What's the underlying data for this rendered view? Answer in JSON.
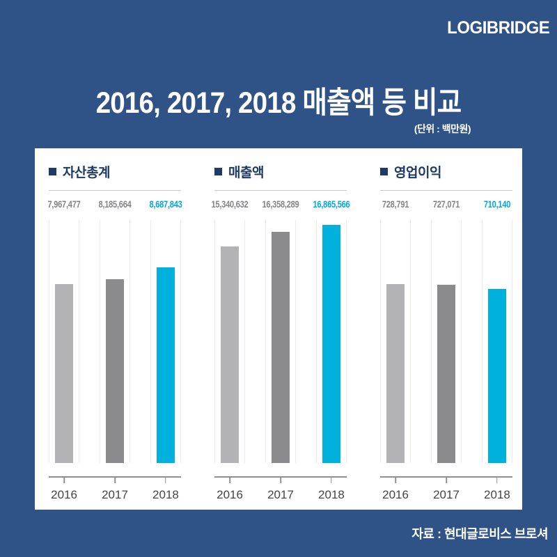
{
  "brand": "LOGIBRIDGE",
  "title": "2016, 2017, 2018 매출액 등 비교",
  "unit_note": "(단위 : 백만원)",
  "source": "자료 : 현대글로비스 브로셔",
  "colors": {
    "background": "#2f5287",
    "card": "#ffffff",
    "heading": "#1e3a66",
    "divider": "#c9c9c9",
    "gridline": "#ebebeb",
    "axis": "#8f8f91",
    "year_label": "#454547",
    "text_light": "#ffffff",
    "accent": "#00b1de"
  },
  "bar_colors": [
    "#b3b3b5",
    "#8b8b8d",
    "#00b1de"
  ],
  "value_colors": [
    "#848487",
    "#848487",
    "#00a7dd"
  ],
  "chart_data": [
    {
      "type": "bar",
      "title": "자산총계",
      "categories": [
        "2016",
        "2017",
        "2018"
      ],
      "values": [
        7967477,
        8185664,
        8687843
      ],
      "value_labels": [
        "7,967,477",
        "8,185,664",
        "8,687,843"
      ],
      "ylim": [
        0,
        10800000
      ],
      "grid": true,
      "legend": "none"
    },
    {
      "type": "bar",
      "title": "매출액",
      "categories": [
        "2016",
        "2017",
        "2018"
      ],
      "values": [
        15340632,
        16358289,
        16865566
      ],
      "value_labels": [
        "15,340,632",
        "16,358,289",
        "16,865,566"
      ],
      "ylim": [
        0,
        17200000
      ],
      "grid": true,
      "legend": "none"
    },
    {
      "type": "bar",
      "title": "영업이익",
      "categories": [
        "2016",
        "2017",
        "2018"
      ],
      "values": [
        728791,
        727071,
        710140
      ],
      "value_labels": [
        "728,791",
        "727,071",
        "710,140"
      ],
      "ylim": [
        0,
        990000
      ],
      "grid": true,
      "legend": "none"
    }
  ]
}
